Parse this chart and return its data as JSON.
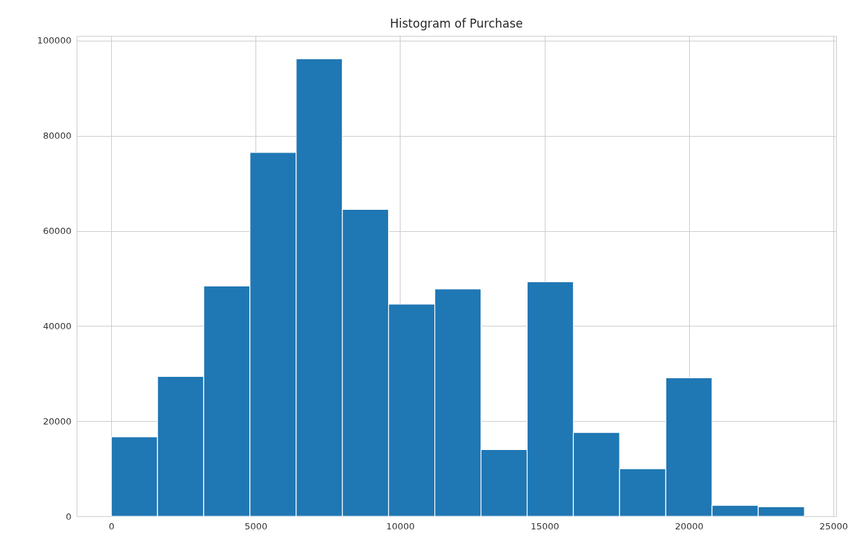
{
  "chart_data": {
    "type": "histogram",
    "title": "Histogram of Purchase",
    "bins": [
      0,
      1600,
      3200,
      4800,
      6400,
      8000,
      9600,
      11200,
      12800,
      14400,
      16000,
      17600,
      19200,
      20800,
      22400,
      24000
    ],
    "values": [
      16700,
      29400,
      48400,
      76500,
      96200,
      64500,
      44600,
      47800,
      14000,
      49300,
      17600,
      10000,
      29100,
      2300,
      2000
    ],
    "color": "#1f77b4",
    "xlim": [
      -1200,
      25100
    ],
    "xticks": [
      0,
      5000,
      10000,
      15000,
      20000,
      25000
    ],
    "ylim": [
      0,
      101000
    ],
    "yticks": [
      0,
      20000,
      40000,
      60000,
      80000,
      100000
    ],
    "grid": true
  }
}
